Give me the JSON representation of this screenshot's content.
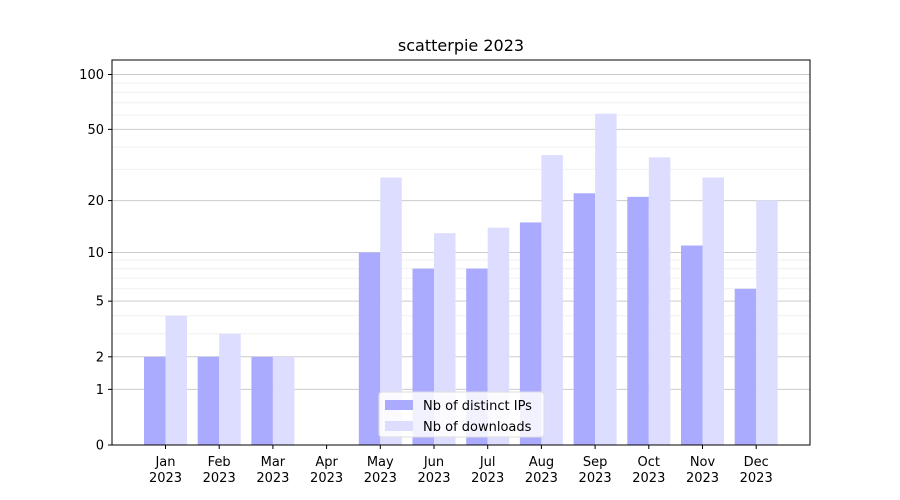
{
  "chart_data": {
    "type": "bar",
    "title": "scatterpie 2023",
    "xlabel": "",
    "ylabel": "",
    "yscale": "log1p",
    "ylim": [
      0,
      120
    ],
    "yticks": [
      0,
      1,
      2,
      5,
      10,
      20,
      50,
      100
    ],
    "ytick_labels": [
      "0",
      "1",
      "2",
      "5",
      "10",
      "20",
      "50",
      "100"
    ],
    "categories": [
      "Jan\n2023",
      "Feb\n2023",
      "Mar\n2023",
      "Apr\n2023",
      "May\n2023",
      "Jun\n2023",
      "Jul\n2023",
      "Aug\n2023",
      "Sep\n2023",
      "Oct\n2023",
      "Nov\n2023",
      "Dec\n2023"
    ],
    "series": [
      {
        "name": "Nb of distinct IPs",
        "color": "#aaaaff",
        "values": [
          2,
          2,
          2,
          0,
          10,
          8,
          8,
          15,
          22,
          21,
          11,
          6
        ]
      },
      {
        "name": "Nb of downloads",
        "color": "#ddddff",
        "values": [
          4,
          3,
          2,
          0,
          27,
          13,
          14,
          36,
          61,
          35,
          27,
          20
        ]
      }
    ],
    "grid": true,
    "legend": "lower-center"
  }
}
